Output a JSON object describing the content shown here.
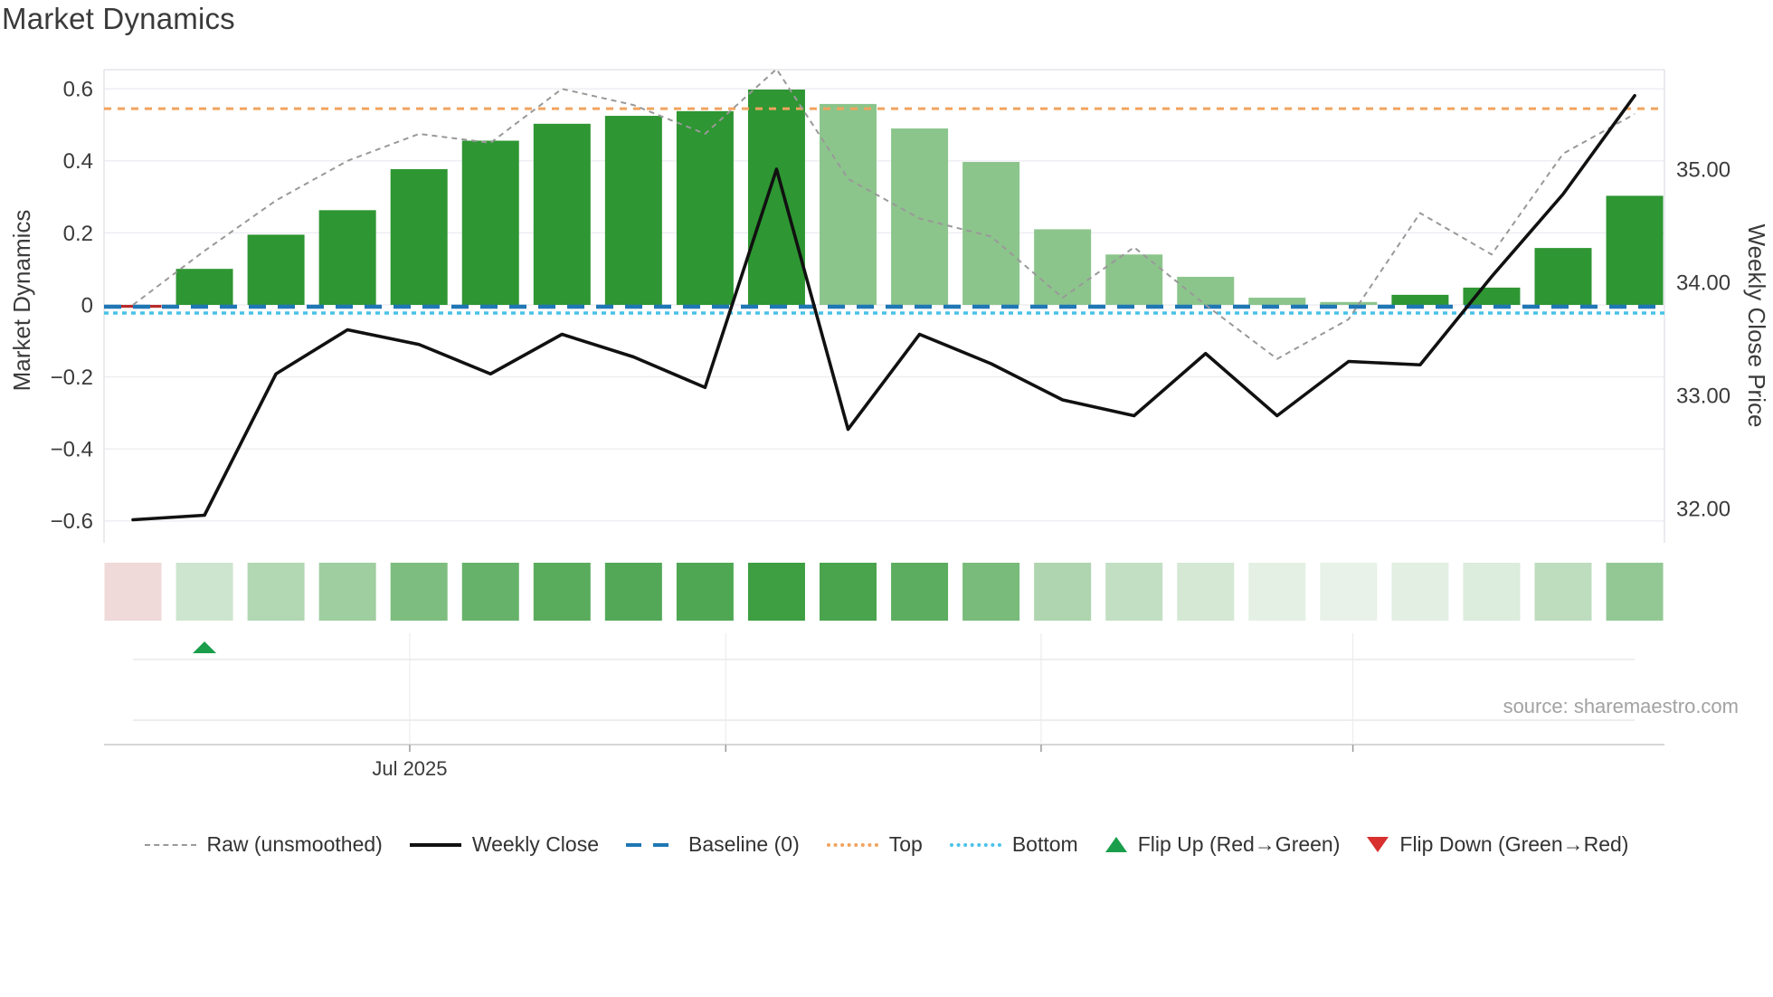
{
  "title": "Market Dynamics",
  "source_note": "source: sharemaestro.com",
  "axes": {
    "left": {
      "title": "Market Dynamics",
      "ticks": [
        "0.6",
        "0.4",
        "0.2",
        "0",
        "−0.2",
        "−0.4",
        "−0.6"
      ],
      "tick_values": [
        0.6,
        0.4,
        0.2,
        0,
        -0.2,
        -0.4,
        -0.6
      ]
    },
    "right": {
      "title": "Weekly Close Price",
      "ticks": [
        "35.00",
        "34.00",
        "33.00",
        "32.00"
      ],
      "tick_values": [
        35,
        34,
        33,
        32
      ]
    },
    "x": {
      "tick_labels": [
        "Jul 2025",
        "",
        "",
        ""
      ]
    }
  },
  "legend": {
    "items": [
      {
        "label": "Raw (unsmoothed)",
        "marker": "dashed-line",
        "color": "#999999"
      },
      {
        "label": "Weekly Close",
        "marker": "solid-line",
        "color": "#111111"
      },
      {
        "label": "Baseline (0)",
        "marker": "long-dash-line",
        "color": "#1f77b4"
      },
      {
        "label": "Top",
        "marker": "dotted-line",
        "color": "#f2a35e"
      },
      {
        "label": "Bottom",
        "marker": "dotted-line",
        "color": "#49c2e8"
      },
      {
        "label": "Flip Up (Red→Green)",
        "marker": "triangle-up",
        "color": "#1a9e4b"
      },
      {
        "label": "Flip Down (Green→Red)",
        "marker": "triangle-down",
        "color": "#d7302f"
      }
    ]
  },
  "chart_data": {
    "type": "bar+line+heatmap",
    "n_weeks": 22,
    "title": "Market Dynamics",
    "ylabel_left": "Market Dynamics",
    "ylabel_right": "Weekly Close Price",
    "ylim_left": [
      -0.66,
      0.65
    ],
    "ylim_right": [
      31.72,
      36.08
    ],
    "grid": "horizontal-left-axis-only",
    "legend_position": "bottom",
    "series": [
      {
        "name": "Market Dynamics",
        "type": "bar",
        "axis": "left",
        "values": [
          -0.008,
          0.1,
          0.195,
          0.263,
          0.377,
          0.456,
          0.503,
          0.525,
          0.538,
          0.598,
          0.558,
          0.49,
          0.397,
          0.21,
          0.14,
          0.078,
          0.02,
          0.008,
          0.028,
          0.048,
          0.158,
          0.303
        ],
        "shades": [
          "red",
          "dark",
          "dark",
          "dark",
          "dark",
          "dark",
          "dark",
          "dark",
          "dark",
          "dark",
          "light",
          "light",
          "light",
          "light",
          "light",
          "light",
          "light",
          "light",
          "dark",
          "dark",
          "dark",
          "dark"
        ]
      },
      {
        "name": "Raw (unsmoothed)",
        "type": "line",
        "style": "dashed",
        "axis": "left",
        "values": [
          0.0,
          0.15,
          0.29,
          0.4,
          0.475,
          0.45,
          0.6,
          0.555,
          0.475,
          0.655,
          0.35,
          0.24,
          0.19,
          0.02,
          0.16,
          0.0,
          -0.15,
          -0.04,
          0.255,
          0.14,
          0.42,
          0.53
        ]
      },
      {
        "name": "Weekly Close",
        "type": "line",
        "style": "solid",
        "axis": "right",
        "values": [
          31.9,
          31.94,
          33.19,
          33.58,
          33.45,
          33.19,
          33.54,
          33.34,
          33.07,
          35.0,
          32.7,
          33.54,
          33.28,
          32.96,
          32.82,
          33.37,
          32.82,
          33.3,
          33.27,
          34.05,
          34.78,
          35.65
        ]
      }
    ],
    "reference_lines": [
      {
        "name": "Baseline (0)",
        "value": 0,
        "style": "long-dash",
        "color": "#1f77b4"
      },
      {
        "name": "Top",
        "value": 0.545,
        "style": "dashed",
        "color": "#f2a35e"
      },
      {
        "name": "Bottom",
        "value": -0.02,
        "style": "dotted",
        "color": "#49c2e8"
      }
    ],
    "heatmap": {
      "values": [
        -0.008,
        0.1,
        0.195,
        0.263,
        0.377,
        0.456,
        0.503,
        0.525,
        0.538,
        0.598,
        0.558,
        0.49,
        0.397,
        0.21,
        0.14,
        0.078,
        0.02,
        0.008,
        0.028,
        0.048,
        0.158,
        0.303
      ]
    },
    "flip_up_marker_indices": [
      1
    ],
    "flip_down_marker_indices": [],
    "x_ticks": [
      {
        "label": "Jul 2025",
        "week_index": 3.87
      },
      {
        "label": "",
        "week_index": 8.29
      },
      {
        "label": "",
        "week_index": 12.7
      },
      {
        "label": "",
        "week_index": 17.06
      }
    ],
    "colors": {
      "bar_dark": "#2e9632",
      "bar_light": "#8cc58c",
      "bar_negative": "#b92b2b",
      "raw": "#999999",
      "weekly": "#111111",
      "baseline": "#1f77b4",
      "top": "#f2a35e",
      "bottom": "#49c2e8",
      "heat_negative": "#efd9d9",
      "heat_scale_low": "#eaf3ea",
      "heat_scale_high": "#2e9632",
      "flip_up": "#1a9e4b",
      "flip_down": "#d7302f",
      "grid": "#ededf2",
      "spine": "#e0e0e6",
      "panel_grid": "#e3e3e3",
      "panel_axis": "#c9c9c9",
      "tick_text": "#3b3b3b",
      "title_text": "#3a3a3a",
      "source_text": "#a2a2a2"
    }
  }
}
